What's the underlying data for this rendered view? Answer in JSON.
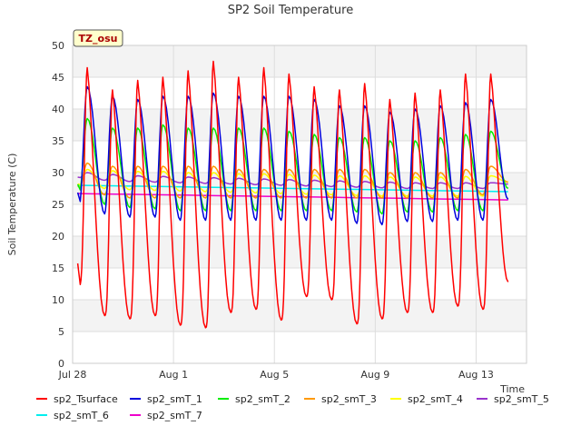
{
  "chart_data": {
    "type": "line",
    "title": "SP2 Soil Temperature",
    "xlabel": "Time",
    "ylabel": "Soil Temperature (C)",
    "badge": "TZ_osu",
    "ylim": [
      0,
      50
    ],
    "yticks": [
      0,
      5,
      10,
      15,
      20,
      25,
      30,
      35,
      40,
      45,
      50
    ],
    "x_start": "Jul 28",
    "x_range_days": [
      0,
      18
    ],
    "xticks": [
      {
        "day": 0,
        "label": "Jul 28"
      },
      {
        "day": 4,
        "label": "Aug 1"
      },
      {
        "day": 8,
        "label": "Aug 5"
      },
      {
        "day": 12,
        "label": "Aug 9"
      },
      {
        "day": 16,
        "label": "Aug 13"
      }
    ],
    "grid": true,
    "legend_position": "bottom",
    "colors": {
      "sp2_Tsurface": "#ff0000",
      "sp2_smT_1": "#0000dd",
      "sp2_smT_2": "#00ee00",
      "sp2_smT_3": "#ff9900",
      "sp2_smT_4": "#ffff00",
      "sp2_smT_5": "#9933cc",
      "sp2_smT_6": "#00eeee",
      "sp2_smT_7": "#ee00cc"
    },
    "series": [
      {
        "name": "sp2_Tsurface",
        "color": "#ff0000",
        "daily_max": [
          46.5,
          43,
          44.5,
          45,
          46,
          47.5,
          45,
          46.5,
          45.5,
          43.5,
          43,
          44,
          41.5,
          42.5,
          43,
          45.5,
          45.5
        ],
        "daily_min": [
          12.3,
          7.5,
          7,
          7.5,
          6,
          5.6,
          8,
          8.5,
          6.8,
          10.5,
          10,
          6.2,
          7,
          8,
          8,
          9,
          8.5
        ],
        "end_value": 12.8
      },
      {
        "name": "sp2_smT_1",
        "color": "#0000dd",
        "daily_max": [
          43.5,
          42,
          41.5,
          42,
          42,
          42.5,
          42,
          42,
          42,
          41.5,
          40.5,
          40.5,
          39.5,
          40,
          40.5,
          41,
          41.5
        ],
        "daily_min": [
          25,
          23.5,
          23,
          23,
          22.5,
          22.5,
          22.5,
          22.5,
          22.5,
          22.5,
          22.5,
          22,
          21.8,
          22.3,
          22.3,
          22.5,
          22.5
        ],
        "end_value": 25.8
      },
      {
        "name": "sp2_smT_2",
        "color": "#00ee00",
        "daily_max": [
          38.5,
          37,
          37,
          37.5,
          37,
          37,
          37,
          37,
          36.5,
          36,
          35.5,
          35.5,
          35,
          35,
          35.5,
          36,
          36.5
        ],
        "daily_min": [
          27,
          25,
          24.5,
          24.3,
          24,
          24,
          24,
          24,
          24,
          24,
          24,
          23.8,
          23.5,
          23.8,
          23.8,
          24,
          24
        ],
        "end_value": 27.5
      },
      {
        "name": "sp2_smT_3",
        "color": "#ff9900",
        "daily_max": [
          31.5,
          31,
          31,
          31,
          31,
          31,
          30.5,
          30.5,
          30.5,
          30.5,
          30.5,
          30.5,
          30,
          30,
          30,
          30.5,
          31
        ],
        "daily_min": [
          27.5,
          26.5,
          26,
          26,
          26,
          26,
          26,
          26,
          26,
          26,
          26,
          26,
          26,
          26,
          26,
          26,
          26.5
        ],
        "end_value": 28.5
      },
      {
        "name": "sp2_smT_4",
        "color": "#ffff00",
        "daily_max": [
          30.5,
          30.3,
          30.2,
          30.2,
          30,
          30,
          29.8,
          29.8,
          29.7,
          29.6,
          29.5,
          29.5,
          29.3,
          29.3,
          29.3,
          29.4,
          29.5
        ],
        "daily_min": [
          28,
          27.5,
          27.3,
          27.2,
          27.1,
          27,
          26.9,
          26.8,
          26.7,
          26.6,
          26.5,
          26.4,
          26.3,
          26.3,
          26.3,
          26.3,
          26.3
        ],
        "end_value": 28.5
      },
      {
        "name": "sp2_smT_5",
        "color": "#9933cc",
        "daily_max": [
          30,
          29.7,
          29.5,
          29.4,
          29.3,
          29.2,
          29.1,
          29,
          28.9,
          28.8,
          28.7,
          28.6,
          28.5,
          28.4,
          28.4,
          28.4,
          28.4
        ],
        "daily_min": [
          29.2,
          28.8,
          28.6,
          28.5,
          28.4,
          28.3,
          28.2,
          28.1,
          28,
          27.9,
          27.8,
          27.7,
          27.6,
          27.5,
          27.5,
          27.5,
          27.5
        ],
        "end_value": 28.2
      },
      {
        "name": "sp2_smT_6",
        "color": "#00eeee",
        "start": 28.0,
        "end": 27.0
      },
      {
        "name": "sp2_smT_7",
        "color": "#ee00cc",
        "start": 26.7,
        "end": 25.7
      }
    ]
  }
}
